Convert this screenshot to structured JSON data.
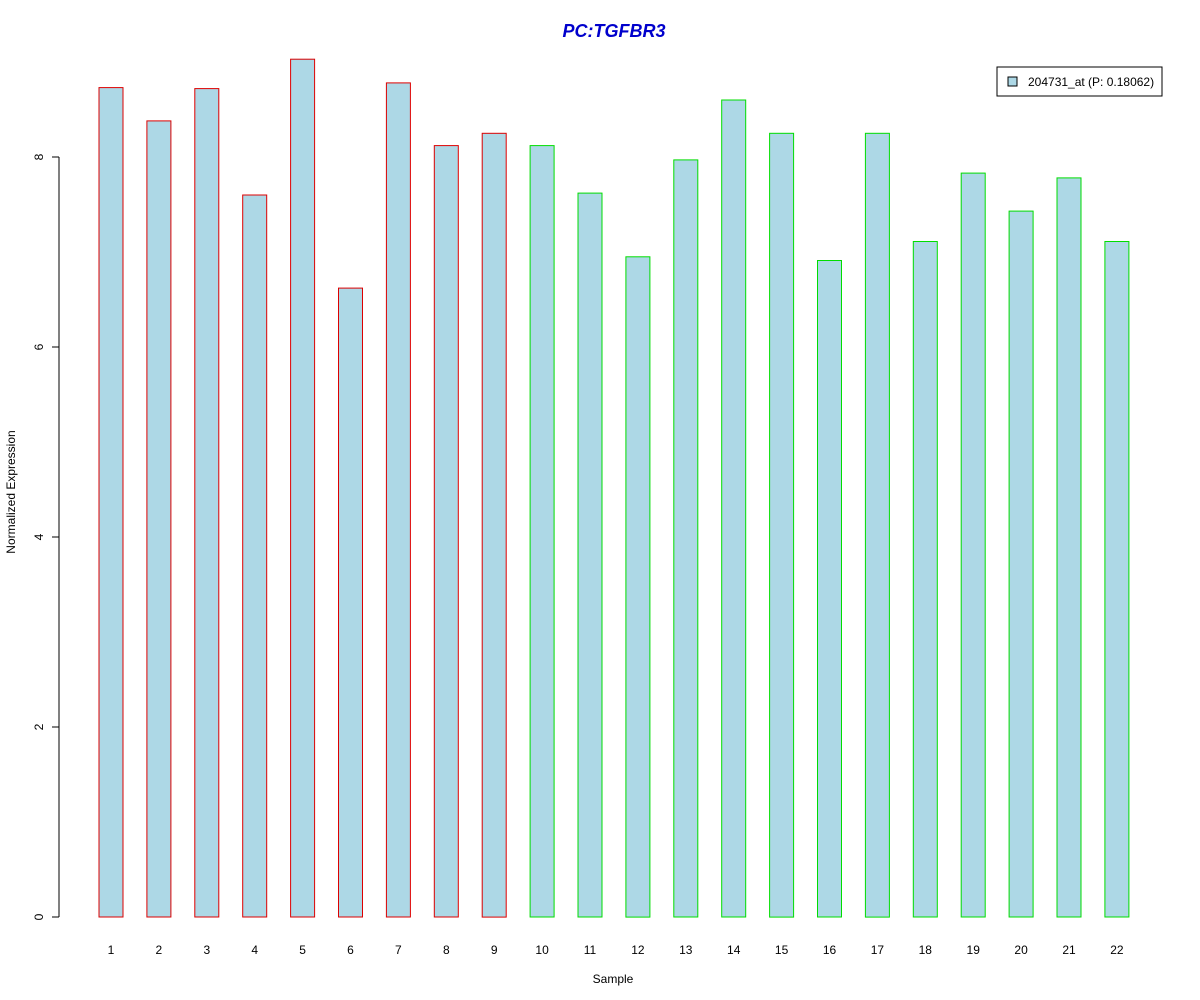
{
  "chart_data": {
    "type": "bar",
    "title": "PC:TGFBR3",
    "xlabel": "Sample",
    "ylabel": "Normalized Expression",
    "categories": [
      "1",
      "2",
      "3",
      "4",
      "5",
      "6",
      "7",
      "8",
      "9",
      "10",
      "11",
      "12",
      "13",
      "14",
      "15",
      "16",
      "17",
      "18",
      "19",
      "20",
      "21",
      "22"
    ],
    "series": [
      {
        "name": "204731_at (P: 0.18062)",
        "values": [
          8.73,
          8.38,
          8.72,
          7.6,
          9.03,
          6.62,
          8.78,
          8.12,
          8.25,
          8.12,
          7.62,
          6.95,
          7.97,
          8.6,
          8.25,
          6.91,
          8.25,
          7.11,
          7.83,
          7.43,
          7.78,
          7.11
        ]
      }
    ],
    "group_border_colors": [
      "#dd0000",
      "#dd0000",
      "#dd0000",
      "#dd0000",
      "#dd0000",
      "#dd0000",
      "#dd0000",
      "#dd0000",
      "#dd0000",
      "#00dd00",
      "#00dd00",
      "#00dd00",
      "#00dd00",
      "#00dd00",
      "#00dd00",
      "#00dd00",
      "#00dd00",
      "#00dd00",
      "#00dd00",
      "#00dd00",
      "#00dd00",
      "#00dd00"
    ],
    "bar_fill": "#add8e6",
    "title_color": "#0000cc",
    "yticks": [
      "0",
      "2",
      "4",
      "6",
      "8"
    ],
    "ylim": [
      0,
      9.1
    ],
    "legend_position": "top-right",
    "grid": false
  }
}
